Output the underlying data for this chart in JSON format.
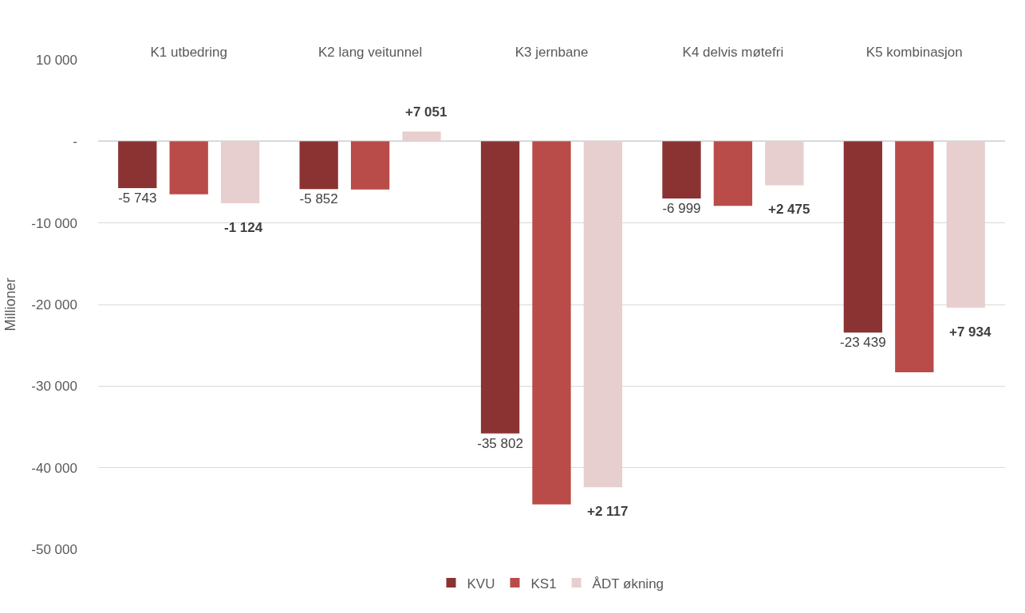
{
  "chart_data": {
    "type": "bar",
    "categories": [
      "K1 utbedring",
      "K2 lang veitunnel",
      "K3 jernbane",
      "K4 delvis møtefri",
      "K5 kombinasjon"
    ],
    "ylabel": "Millioner",
    "series": [
      {
        "name": "KVU",
        "color": "#8b3333",
        "values": [
          -5743,
          -5852,
          -35802,
          -6999,
          -23439
        ],
        "value_labels": [
          "-5 743",
          "-5 852",
          "-35 802",
          "-6 999",
          "-23 439"
        ]
      },
      {
        "name": "KS1",
        "color": "#b94b49",
        "values": [
          -6500,
          -5900,
          -44500,
          -7900,
          -28300
        ]
      },
      {
        "name": "ÅDT økning",
        "color": "#e8cfcf",
        "values": [
          -7600,
          1200,
          -42400,
          -5400,
          -20400
        ]
      }
    ],
    "annotations": [
      "-1 124",
      "+7 051",
      "+2 117",
      "+2 475",
      "+7 934"
    ],
    "ylim": [
      -50000,
      10000
    ],
    "yticks": [
      {
        "value": 10000,
        "label": "10 000"
      },
      {
        "value": 0,
        "label": "-"
      },
      {
        "value": -10000,
        "label": "-10 000"
      },
      {
        "value": -20000,
        "label": "-20 000"
      },
      {
        "value": -30000,
        "label": "-30 000"
      },
      {
        "value": -40000,
        "label": "-40 000"
      },
      {
        "value": -50000,
        "label": "-50 000"
      }
    ],
    "grid": "y",
    "legend": "bottom"
  }
}
